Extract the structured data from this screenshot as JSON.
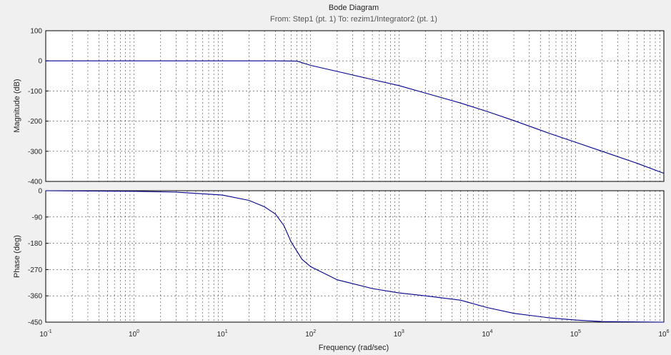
{
  "chart_data": {
    "type": "line",
    "title": "Bode Diagram",
    "subtitle": "From: Step1 (pt. 1)  To: rezim1/Integrator2 (pt. 1)",
    "xlabel": "Frequency  (rad/sec)",
    "xscale": "log",
    "xlim": [
      0.1,
      1000000
    ],
    "grid": true,
    "x_ticks": [
      {
        "base": "10",
        "exp": "-1",
        "value": 0.1
      },
      {
        "base": "10",
        "exp": "0",
        "value": 1
      },
      {
        "base": "10",
        "exp": "1",
        "value": 10
      },
      {
        "base": "10",
        "exp": "2",
        "value": 100
      },
      {
        "base": "10",
        "exp": "3",
        "value": 1000
      },
      {
        "base": "10",
        "exp": "4",
        "value": 10000
      },
      {
        "base": "10",
        "exp": "5",
        "value": 100000
      },
      {
        "base": "10",
        "exp": "6",
        "value": 1000000
      }
    ],
    "panels": [
      {
        "ylabel": "Magnitude (dB)",
        "ylim": [
          -400,
          100
        ],
        "yticks": [
          100,
          0,
          -100,
          -200,
          -300,
          -400
        ],
        "line_color": "#00008b",
        "x": [
          0.1,
          1,
          10,
          40,
          70,
          100,
          200,
          500,
          1000,
          2000,
          5000,
          10000,
          20000,
          50000,
          100000,
          200000,
          500000,
          1000000
        ],
        "y": [
          0,
          0,
          0,
          0,
          -1,
          -15,
          -35,
          -62,
          -82,
          -107,
          -140,
          -168,
          -198,
          -240,
          -270,
          -300,
          -340,
          -373
        ]
      },
      {
        "ylabel": "Phase (deg)",
        "ylim": [
          -450,
          0
        ],
        "yticks": [
          0,
          -90,
          -180,
          -270,
          -360,
          -450
        ],
        "line_color": "#00008b",
        "x": [
          0.1,
          1,
          3,
          10,
          20,
          30,
          40,
          50,
          60,
          80,
          100,
          200,
          500,
          1000,
          2000,
          5000,
          10000,
          20000,
          50000,
          100000,
          200000,
          1000000
        ],
        "y": [
          0,
          -2,
          -5,
          -15,
          -33,
          -55,
          -80,
          -120,
          -175,
          -235,
          -260,
          -305,
          -335,
          -350,
          -360,
          -375,
          -400,
          -420,
          -435,
          -443,
          -448,
          -450
        ]
      }
    ]
  }
}
